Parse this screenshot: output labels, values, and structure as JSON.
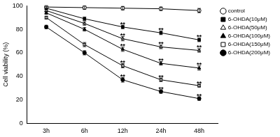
{
  "chart_data": {
    "type": "line",
    "y_label": "Cell viability (%)",
    "categories": [
      "3h",
      "6h",
      "12h",
      "24h",
      "48h"
    ],
    "ylim": [
      0,
      100
    ],
    "yticks": [
      0,
      20,
      40,
      60,
      80,
      100
    ],
    "grid": false,
    "legend": "right",
    "series": [
      {
        "name": "control",
        "color": "#000000",
        "marker": "circle-open",
        "values": [
          99,
          98.5,
          98,
          97.5,
          96
        ],
        "errors": [
          1.2,
          1.5,
          1.5,
          1.5,
          1.8
        ]
      },
      {
        "name": "6-OHDA(10μM)",
        "color": "#000000",
        "marker": "square",
        "values": [
          98,
          89,
          82,
          77,
          71
        ],
        "errors": [
          1.2,
          1.5,
          1.5,
          1.5,
          1.5
        ]
      },
      {
        "name": "6-OHDA(50μM)",
        "color": "#000000",
        "marker": "triangle-open",
        "values": [
          96,
          85,
          72,
          65,
          62
        ],
        "errors": [
          1.2,
          1.5,
          1.8,
          1.5,
          1.5
        ]
      },
      {
        "name": "6-OHDA(100μM)",
        "color": "#000000",
        "marker": "triangle",
        "values": [
          94,
          80,
          63,
          51,
          47
        ],
        "errors": [
          1.2,
          1.5,
          1.8,
          1.5,
          1.8
        ]
      },
      {
        "name": "6-OHDA(150μM)",
        "color": "#000000",
        "marker": "square-open",
        "values": [
          90,
          67,
          49,
          37,
          32
        ],
        "errors": [
          1.2,
          1.8,
          1.8,
          1.5,
          1.2
        ]
      },
      {
        "name": "6-OHDA(200μM)",
        "color": "#000000",
        "marker": "circle",
        "values": [
          82,
          60,
          37,
          27,
          21
        ],
        "errors": [
          1.5,
          1.8,
          2,
          1.5,
          1.5
        ]
      }
    ],
    "annotations": [
      {
        "series": "6-OHDA(10μM)",
        "x": "12h",
        "text": "**"
      },
      {
        "series": "6-OHDA(10μM)",
        "x": "24h",
        "text": "**"
      },
      {
        "series": "6-OHDA(10μM)",
        "x": "48h",
        "text": "**"
      },
      {
        "series": "6-OHDA(50μM)",
        "x": "12h",
        "text": "**"
      },
      {
        "series": "6-OHDA(50μM)",
        "x": "24h",
        "text": "**"
      },
      {
        "series": "6-OHDA(50μM)",
        "x": "48h",
        "text": "**"
      },
      {
        "series": "6-OHDA(100μM)",
        "x": "12h",
        "text": "**"
      },
      {
        "series": "6-OHDA(100μM)",
        "x": "24h",
        "text": "**"
      },
      {
        "series": "6-OHDA(100μM)",
        "x": "48h",
        "text": "**"
      },
      {
        "series": "6-OHDA(150μM)",
        "x": "12h",
        "text": "**"
      },
      {
        "series": "6-OHDA(150μM)",
        "x": "24h",
        "text": "**"
      },
      {
        "series": "6-OHDA(150μM)",
        "x": "48h",
        "text": "**"
      },
      {
        "series": "6-OHDA(200μM)",
        "x": "12h",
        "text": "**"
      },
      {
        "series": "6-OHDA(200μM)",
        "x": "24h",
        "text": "**"
      },
      {
        "series": "6-OHDA(200μM)",
        "x": "48h",
        "text": "**"
      }
    ]
  }
}
